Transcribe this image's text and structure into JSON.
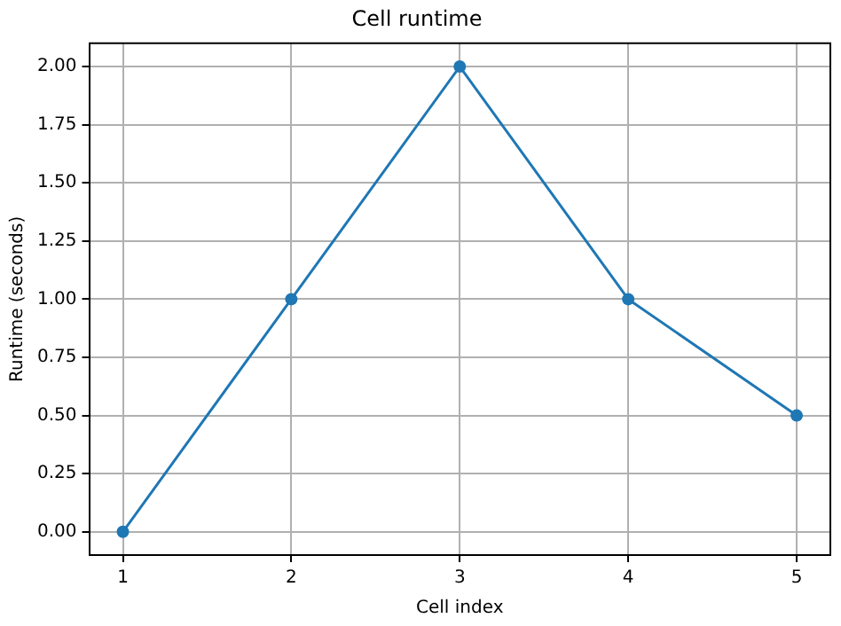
{
  "chart_data": {
    "type": "line",
    "title": "Cell runtime",
    "xlabel": "Cell index",
    "ylabel": "Runtime (seconds)",
    "x": [
      1,
      2,
      3,
      4,
      5
    ],
    "series": [
      {
        "color": "#1f77b4",
        "values": [
          0,
          1,
          2,
          1,
          0.5
        ]
      }
    ],
    "xlim": [
      0.8,
      5.2
    ],
    "xticks": [
      1,
      2,
      3,
      4,
      5
    ],
    "ylim": [
      -0.1,
      2.1
    ],
    "yticks": [
      {
        "value": 0,
        "label": "0.00"
      },
      {
        "value": 0.25,
        "label": "0.25"
      },
      {
        "value": 0.5,
        "label": "0.50"
      },
      {
        "value": 0.75,
        "label": "0.75"
      },
      {
        "value": 1,
        "label": "1.00"
      },
      {
        "value": 1.25,
        "label": "1.25"
      },
      {
        "value": 1.5,
        "label": "1.50"
      },
      {
        "value": 1.75,
        "label": "1.75"
      },
      {
        "value": 2,
        "label": "2.00"
      }
    ],
    "grid": true,
    "marker": "circle",
    "line_style": "solid",
    "legend": false
  }
}
